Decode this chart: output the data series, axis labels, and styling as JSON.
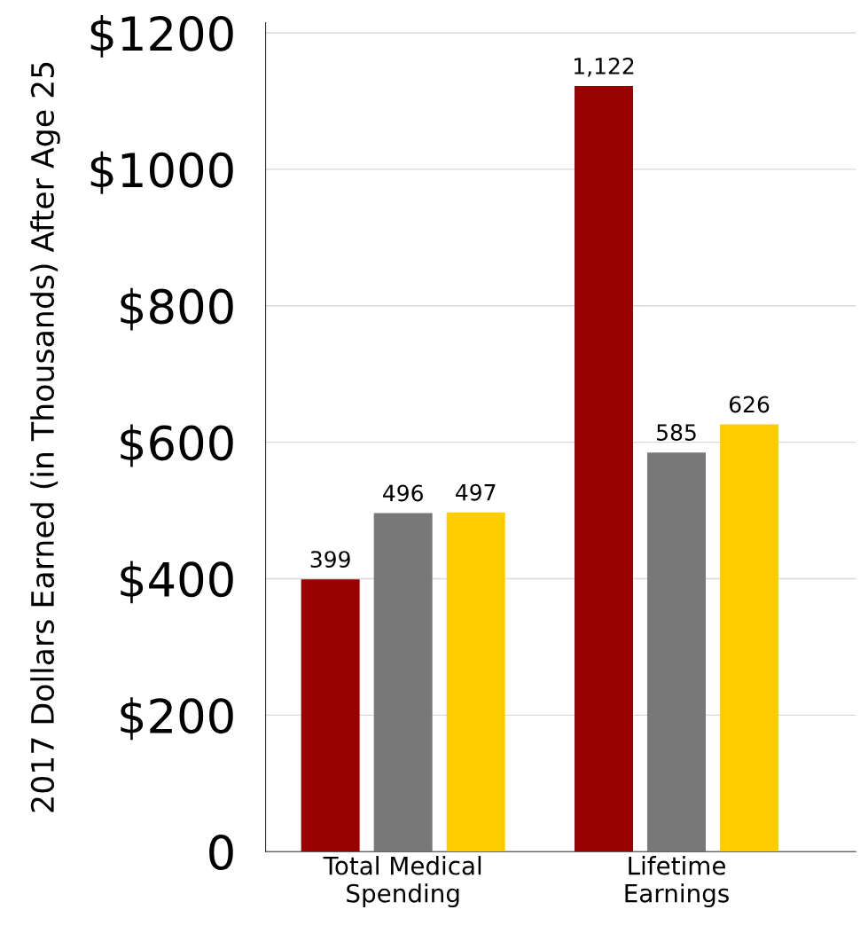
{
  "chart_data": {
    "type": "bar",
    "ylabel": "2017 Dollars Earned (in Thousands) After Age 25",
    "categories": [
      "Total Medical\nSpending",
      "Lifetime\nEarnings"
    ],
    "series": [
      {
        "color": "#990000",
        "values": [
          399,
          1122
        ],
        "value_labels": [
          "399",
          "1,122"
        ]
      },
      {
        "color": "#787878",
        "values": [
          496,
          585
        ],
        "value_labels": [
          "496",
          "585"
        ]
      },
      {
        "color": "#ffcc00",
        "values": [
          497,
          626
        ],
        "value_labels": [
          "497",
          "626"
        ]
      }
    ],
    "ylim": [
      0,
      1215
    ],
    "yticks": [
      0,
      {
        "value": 200,
        "label": "$200"
      },
      {
        "value": 400,
        "label": "$400"
      },
      {
        "value": 600,
        "label": "$600"
      },
      {
        "value": 800,
        "label": "$800"
      },
      {
        "value": 1000,
        "label": "$1000"
      },
      {
        "value": 1200,
        "label": "$1200"
      }
    ],
    "grid": "y",
    "legend": false
  }
}
